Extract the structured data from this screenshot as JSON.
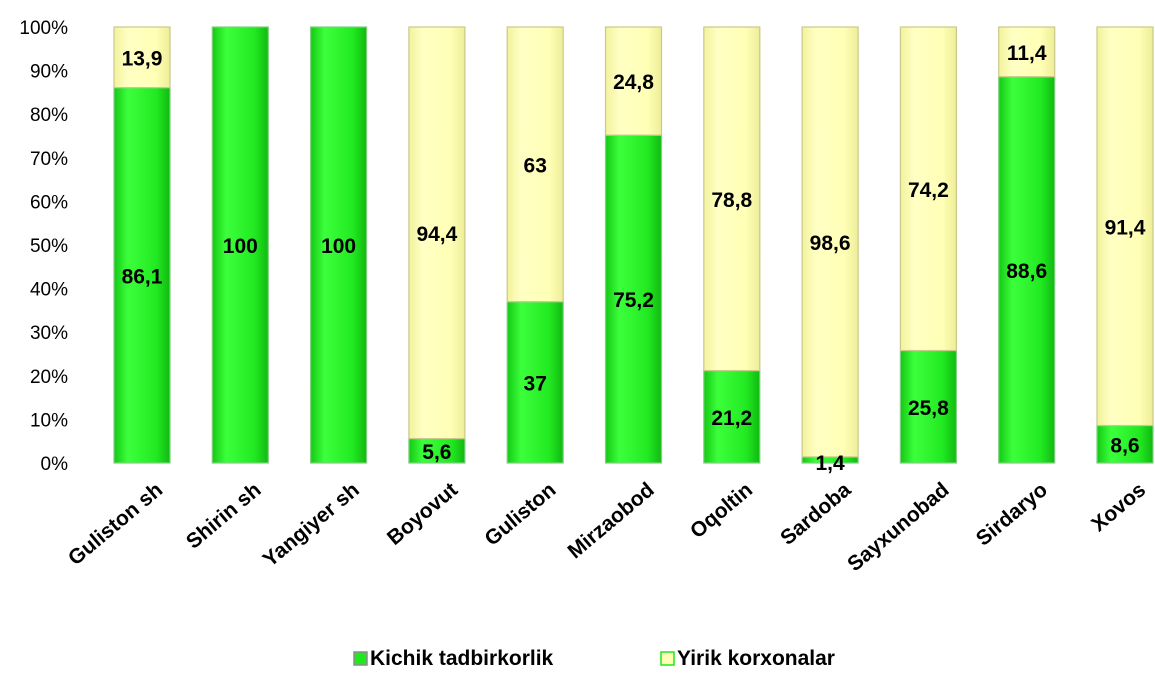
{
  "chart_data": {
    "type": "bar",
    "stacked": true,
    "normalized": true,
    "categories": [
      "Guliston sh",
      "Shirin sh",
      "Yangiyer sh",
      "Boyovut",
      "Guliston",
      "Mirzaobod",
      "Oqoltin",
      "Sardoba",
      "Sayxunobad",
      "Sirdaryo",
      "Xovos"
    ],
    "series": [
      {
        "name": "Kichik tadbirkorlik",
        "color": "#1fe81f",
        "values": [
          86.1,
          100,
          100,
          5.6,
          37,
          75.2,
          21.2,
          1.4,
          25.8,
          88.6,
          8.6
        ],
        "labels": [
          "86,1",
          "100",
          "100",
          "5,6",
          "37",
          "75,2",
          "21,2",
          "1,4",
          "25,8",
          "88,6",
          "8,6"
        ]
      },
      {
        "name": "Yirik korxonalar",
        "color": "#ffffb3",
        "values": [
          13.9,
          0,
          0,
          94.4,
          63,
          24.8,
          78.8,
          98.6,
          74.2,
          11.4,
          91.4
        ],
        "labels": [
          "13,9",
          "",
          "",
          "94,4",
          "63",
          "24,8",
          "78,8",
          "98,6",
          "74,2",
          "11,4",
          "91,4"
        ]
      }
    ],
    "y_ticks": [
      "0%",
      "10%",
      "20%",
      "30%",
      "40%",
      "50%",
      "60%",
      "70%",
      "80%",
      "90%",
      "100%"
    ],
    "ylim": [
      0,
      100
    ],
    "grid": false,
    "legend_position": "bottom",
    "title": "",
    "xlabel": "",
    "ylabel": ""
  }
}
